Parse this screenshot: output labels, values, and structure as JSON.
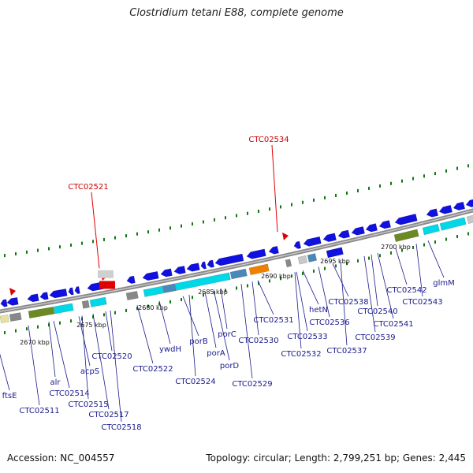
{
  "title": "Clostridium tetani E88, complete genome",
  "footer": {
    "accession": "Accession: NC_004557",
    "topology": "Topology: circular; Length: 2,799,251 bp; Genes: 2,445"
  },
  "colors": {
    "backbone": "#8a8a8a",
    "cds": "#1010e0",
    "label": "#1a1a8c",
    "highlight": "#e00000",
    "dots": "#117711",
    "cyan": "#00d8e8",
    "steel": "#4a88b8",
    "olive": "#6b8a22",
    "orange": "#f08000",
    "grey": "#888888",
    "pale": "#e8e0a0"
  },
  "kbp_ticks": [
    "2670 kbp",
    "2675 kbp",
    "2680 kbp",
    "2685 kbp",
    "2690 kbp",
    "2695 kbp",
    "2700 kbp"
  ],
  "highlighted_genes": [
    "CTC02521",
    "CTC02534"
  ],
  "genes": [
    "ftsE",
    "CTC02511",
    "alr",
    "CTC02514",
    "acpS",
    "CTC02515",
    "CTC02517",
    "CTC02518",
    "CTC02520",
    "CTC02522",
    "ywdH",
    "CTC02524",
    "porB",
    "porA",
    "porC",
    "porD",
    "CTC02529",
    "CTC02530",
    "CTC02531",
    "CTC02533",
    "CTC02532",
    "hetN",
    "CTC02536",
    "CTC02537",
    "CTC02538",
    "CTC02539",
    "CTC02540",
    "CTC02541",
    "CTC02542",
    "CTC02543",
    "glmM"
  ]
}
